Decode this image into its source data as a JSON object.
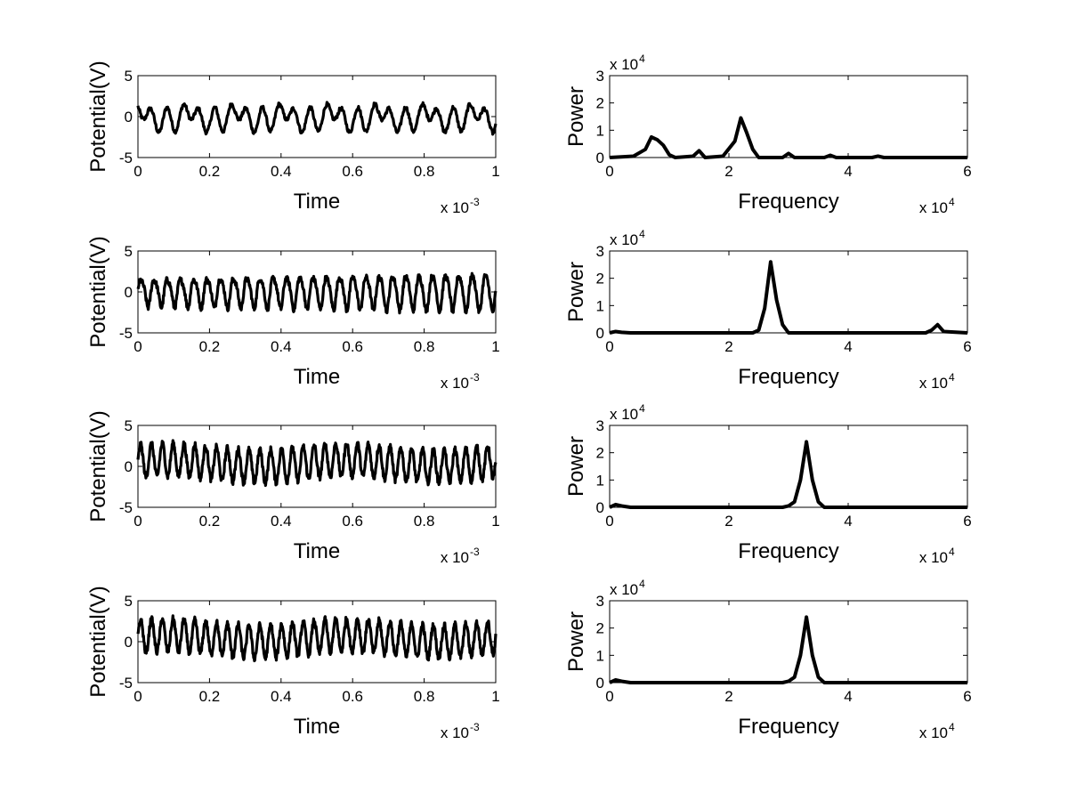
{
  "chart_data": [
    {
      "id": "time-1",
      "type": "line",
      "xlabel": "Time",
      "ylabel": "Potential(V)",
      "x_multiplier": "x 10",
      "x_multiplier_exp": "-3",
      "xlim": [
        0,
        1
      ],
      "ylim": [
        -5,
        5
      ],
      "xticks": [
        0,
        0.2,
        0.4,
        0.6,
        0.8,
        1
      ],
      "xtick_labels": [
        "0",
        "0.2",
        "0.4",
        "0.6",
        "0.8",
        "1"
      ],
      "yticks": [
        -5,
        0,
        5
      ],
      "ytick_labels": [
        "-5",
        "0",
        "5"
      ],
      "grid": false,
      "color": "#000000",
      "signal": {
        "components": [
          {
            "amp": 0.55,
            "freq": 7.5,
            "phase": 1.2
          },
          {
            "amp": 0.5,
            "freq": 15,
            "phase": 0.4
          },
          {
            "amp": 1.25,
            "freq": 22.5,
            "phase": 2.6
          }
        ],
        "offset": -0.1,
        "fuzz": 0.25,
        "samples": 600
      }
    },
    {
      "id": "power-1",
      "type": "line",
      "xlabel": "Frequency",
      "ylabel": "Power",
      "x_multiplier": "x 10",
      "x_multiplier_exp": "4",
      "y_multiplier": "x 10",
      "y_multiplier_exp": "4",
      "xlim": [
        0,
        6
      ],
      "ylim": [
        0,
        3
      ],
      "xticks": [
        0,
        2,
        4,
        6
      ],
      "xtick_labels": [
        "0",
        "2",
        "4",
        "6"
      ],
      "yticks": [
        0,
        1,
        2,
        3
      ],
      "ytick_labels": [
        "0",
        "1",
        "2",
        "3"
      ],
      "grid": false,
      "color": "#000000",
      "x": [
        0,
        0.4,
        0.6,
        0.7,
        0.8,
        0.9,
        1.0,
        1.1,
        1.4,
        1.5,
        1.6,
        1.9,
        2.1,
        2.2,
        2.3,
        2.4,
        2.5,
        2.9,
        3.0,
        3.1,
        3.6,
        3.7,
        3.8,
        4.4,
        4.5,
        4.6,
        6.0
      ],
      "y": [
        0,
        0.05,
        0.3,
        0.75,
        0.65,
        0.45,
        0.1,
        0,
        0.05,
        0.25,
        0,
        0.05,
        0.6,
        1.45,
        0.9,
        0.3,
        0,
        0,
        0.15,
        0,
        0,
        0.08,
        0,
        0,
        0.05,
        0,
        0
      ]
    },
    {
      "id": "time-2",
      "type": "line",
      "xlabel": "Time",
      "ylabel": "Potential(V)",
      "x_multiplier": "x 10",
      "x_multiplier_exp": "-3",
      "xlim": [
        0,
        1
      ],
      "ylim": [
        -5,
        5
      ],
      "xticks": [
        0,
        0.2,
        0.4,
        0.6,
        0.8,
        1
      ],
      "xtick_labels": [
        "0",
        "0.2",
        "0.4",
        "0.6",
        "0.8",
        "1"
      ],
      "yticks": [
        -5,
        0,
        5
      ],
      "ytick_labels": [
        "-5",
        "0",
        "5"
      ],
      "grid": false,
      "color": "#000000",
      "signal": {
        "components": [
          {
            "amp": 1.6,
            "freq": 27,
            "phase": 0
          },
          {
            "amp": 0.3,
            "freq": 54,
            "phase": 1.0
          }
        ],
        "offset": 0,
        "drift": 0.6,
        "fuzz": 0.35,
        "samples": 800
      }
    },
    {
      "id": "power-2",
      "type": "line",
      "xlabel": "Frequency",
      "ylabel": "Power",
      "x_multiplier": "x 10",
      "x_multiplier_exp": "4",
      "y_multiplier": "x 10",
      "y_multiplier_exp": "4",
      "xlim": [
        0,
        6
      ],
      "ylim": [
        0,
        3
      ],
      "xticks": [
        0,
        2,
        4,
        6
      ],
      "xtick_labels": [
        "0",
        "2",
        "4",
        "6"
      ],
      "yticks": [
        0,
        1,
        2,
        3
      ],
      "ytick_labels": [
        "0",
        "1",
        "2",
        "3"
      ],
      "grid": false,
      "color": "#000000",
      "x": [
        0,
        0.1,
        0.2,
        0.35,
        2.4,
        2.5,
        2.6,
        2.7,
        2.8,
        2.9,
        3.0,
        5.3,
        5.4,
        5.5,
        5.6,
        6.0
      ],
      "y": [
        0,
        0.05,
        0.02,
        0,
        0,
        0.1,
        0.9,
        2.6,
        1.2,
        0.3,
        0,
        0,
        0.1,
        0.3,
        0.05,
        0
      ]
    },
    {
      "id": "time-3",
      "type": "line",
      "xlabel": "Time",
      "ylabel": "Potential(V)",
      "x_multiplier": "x 10",
      "x_multiplier_exp": "-3",
      "xlim": [
        0,
        1
      ],
      "ylim": [
        -5,
        5
      ],
      "xticks": [
        0,
        0.2,
        0.4,
        0.6,
        0.8,
        1
      ],
      "xtick_labels": [
        "0",
        "0.2",
        "0.4",
        "0.6",
        "0.8",
        "1"
      ],
      "yticks": [
        -5,
        0,
        5
      ],
      "ytick_labels": [
        "-5",
        "0",
        "5"
      ],
      "grid": false,
      "color": "#000000",
      "signal": {
        "components": [
          {
            "amp": 2.0,
            "freq": 33,
            "phase": 0
          },
          {
            "amp": 0.4,
            "freq": 2,
            "phase": 0.5
          }
        ],
        "offset": 0.4,
        "fuzz": 0.4,
        "samples": 900
      }
    },
    {
      "id": "power-3",
      "type": "line",
      "xlabel": "Frequency",
      "ylabel": "Power",
      "x_multiplier": "x 10",
      "x_multiplier_exp": "4",
      "y_multiplier": "x 10",
      "y_multiplier_exp": "4",
      "xlim": [
        0,
        6
      ],
      "ylim": [
        0,
        3
      ],
      "xticks": [
        0,
        2,
        4,
        6
      ],
      "xtick_labels": [
        "0",
        "2",
        "4",
        "6"
      ],
      "yticks": [
        0,
        1,
        2,
        3
      ],
      "ytick_labels": [
        "0",
        "1",
        "2",
        "3"
      ],
      "grid": false,
      "color": "#000000",
      "x": [
        0,
        0.1,
        0.2,
        0.35,
        2.9,
        3.0,
        3.1,
        3.2,
        3.3,
        3.4,
        3.5,
        3.6,
        6.0
      ],
      "y": [
        0,
        0.1,
        0.05,
        0,
        0,
        0.05,
        0.2,
        1.0,
        2.4,
        1.0,
        0.2,
        0,
        0
      ]
    },
    {
      "id": "time-4",
      "type": "line",
      "xlabel": "Time",
      "ylabel": "Potential(V)",
      "x_multiplier": "x 10",
      "x_multiplier_exp": "-3",
      "xlim": [
        0,
        1
      ],
      "ylim": [
        -5,
        5
      ],
      "xticks": [
        0,
        0.2,
        0.4,
        0.6,
        0.8,
        1
      ],
      "xtick_labels": [
        "0",
        "0.2",
        "0.4",
        "0.6",
        "0.8",
        "1"
      ],
      "yticks": [
        -5,
        0,
        5
      ],
      "ytick_labels": [
        "-5",
        "0",
        "5"
      ],
      "grid": false,
      "color": "#000000",
      "signal": {
        "components": [
          {
            "amp": 2.0,
            "freq": 33,
            "phase": 0
          },
          {
            "amp": 0.4,
            "freq": 2,
            "phase": 0.5
          }
        ],
        "offset": 0.4,
        "fuzz": 0.4,
        "samples": 900
      }
    },
    {
      "id": "power-4",
      "type": "line",
      "xlabel": "Frequency",
      "ylabel": "Power",
      "x_multiplier": "x 10",
      "x_multiplier_exp": "4",
      "y_multiplier": "x 10",
      "y_multiplier_exp": "4",
      "xlim": [
        0,
        6
      ],
      "ylim": [
        0,
        3
      ],
      "xticks": [
        0,
        2,
        4,
        6
      ],
      "xtick_labels": [
        "0",
        "2",
        "4",
        "6"
      ],
      "yticks": [
        0,
        1,
        2,
        3
      ],
      "ytick_labels": [
        "0",
        "1",
        "2",
        "3"
      ],
      "grid": false,
      "color": "#000000",
      "x": [
        0,
        0.1,
        0.2,
        0.35,
        2.9,
        3.0,
        3.1,
        3.2,
        3.3,
        3.4,
        3.5,
        3.6,
        6.0
      ],
      "y": [
        0,
        0.1,
        0.05,
        0,
        0,
        0.05,
        0.2,
        1.0,
        2.4,
        1.0,
        0.2,
        0,
        0
      ]
    }
  ]
}
